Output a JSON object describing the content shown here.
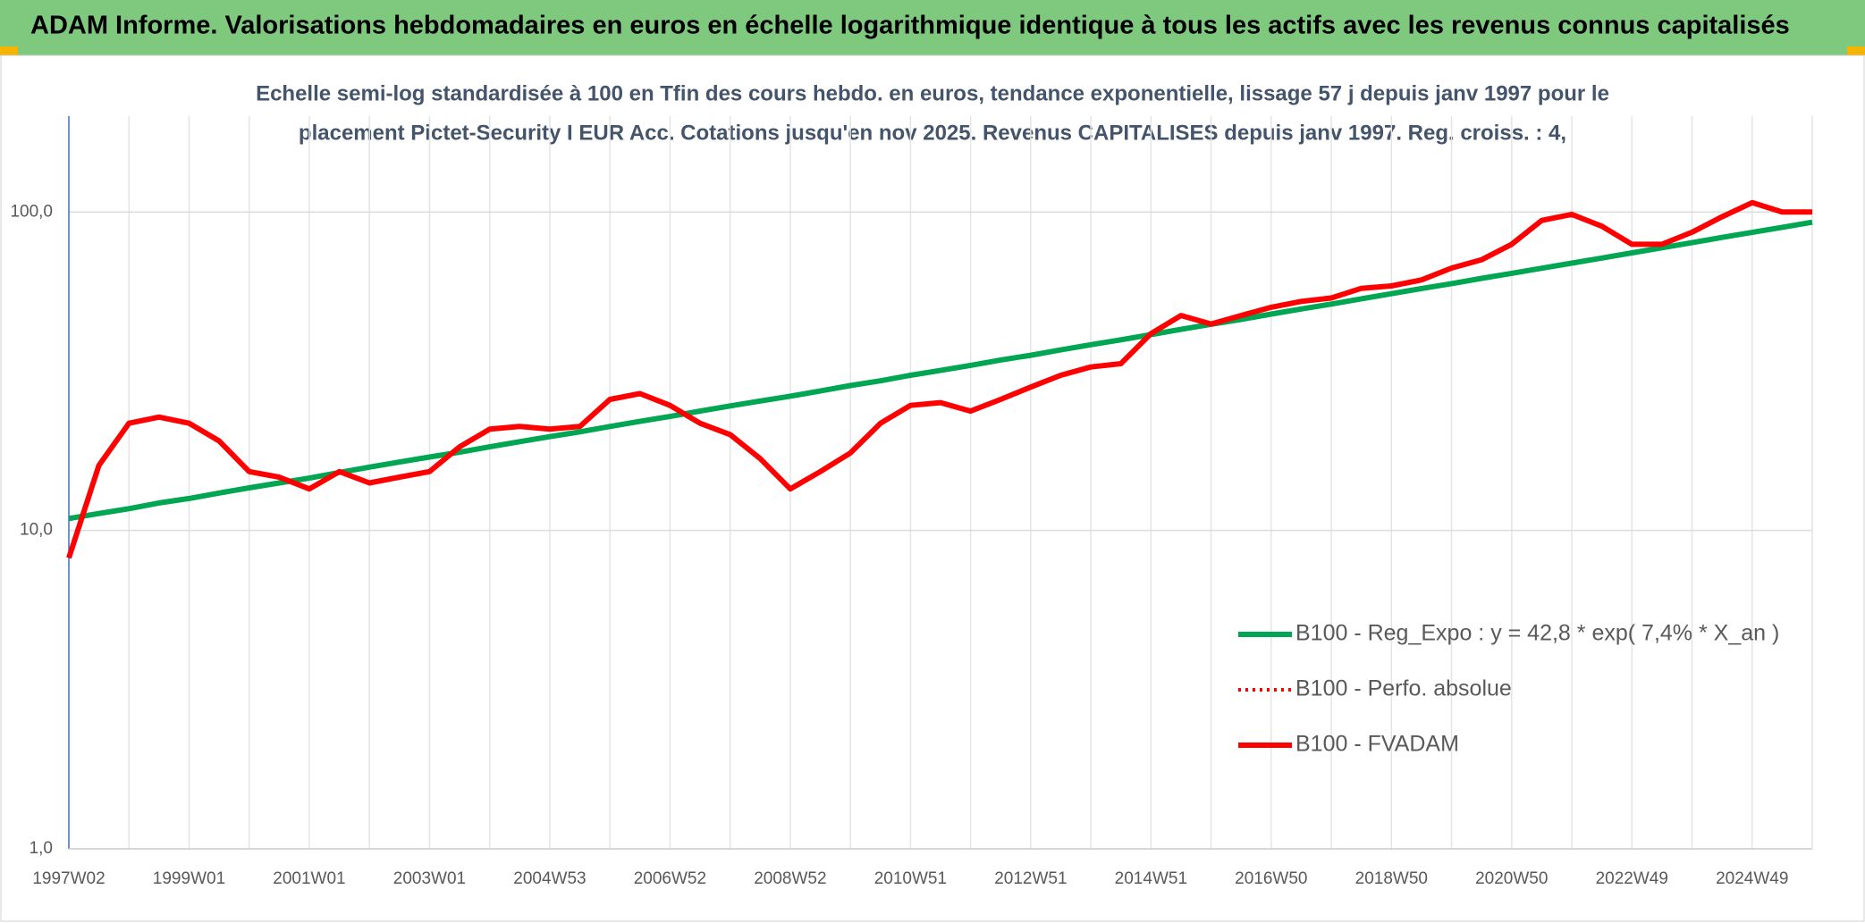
{
  "chart_data": {
    "type": "line",
    "title": "ADAM Informe. Valorisations hebdomadaires en euros en échelle logarithmique identique à tous les actifs avec les revenus connus capitalisés",
    "subtitle": [
      "Echelle semi-log standardisée à 100 en Tfin des cours hebdo. en euros, tendance exponentielle, lissage 57 j depuis janv 1997 pour le",
      "placement Pictet-Security I EUR Acc. Cotations jusqu'en nov 2025. Revenus CAPITALISES depuis janv 1997. Reg. croiss. : 4,"
    ],
    "categories": [
      "1997W02",
      null,
      null,
      null,
      "1999W01",
      null,
      null,
      null,
      "2001W01",
      null,
      null,
      null,
      "2003W01",
      null,
      null,
      null,
      "2004W53",
      null,
      null,
      null,
      "2006W52",
      null,
      null,
      null,
      "2008W52",
      null,
      null,
      null,
      "2010W51",
      null,
      null,
      null,
      "2012W51",
      null,
      null,
      null,
      "2014W51",
      null,
      null,
      null,
      "2016W50",
      null,
      null,
      null,
      "2018W50",
      null,
      null,
      null,
      "2020W50",
      null,
      null,
      null,
      "2022W49",
      null,
      null,
      null,
      "2024W49",
      null,
      null
    ],
    "series": [
      {
        "name": "B100 - Reg_Expo : y = 42,8 * exp( 7,4% *  X_an )",
        "color": "#00a651",
        "style": "solid",
        "values": [
          10.9,
          11.3,
          11.7,
          12.2,
          12.6,
          13.1,
          13.6,
          14.1,
          14.6,
          15.2,
          15.8,
          16.4,
          17.0,
          17.6,
          18.3,
          19.0,
          19.7,
          20.4,
          21.2,
          22.0,
          22.8,
          23.7,
          24.6,
          25.5,
          26.4,
          27.4,
          28.5,
          29.5,
          30.7,
          31.8,
          33.0,
          34.3,
          35.5,
          36.9,
          38.3,
          39.7,
          41.2,
          42.8,
          44.4,
          46.0,
          47.8,
          49.6,
          51.4,
          53.4,
          55.4,
          57.5,
          59.6,
          61.9,
          64.2,
          66.6,
          69.1,
          71.7,
          74.4,
          77.2,
          80.1,
          83.2,
          86.3,
          89.5,
          92.9
        ]
      },
      {
        "name": "B100 - Perfo. absolue",
        "color": "#ff0000",
        "style": "dotted",
        "values": [
          8.2,
          16,
          21.7,
          22.7,
          21.7,
          19.1,
          15.3,
          14.7,
          13.5,
          15.3,
          14.1,
          14.7,
          15.3,
          18.3,
          20.8,
          21.2,
          20.8,
          21.2,
          25.8,
          26.9,
          24.7,
          21.7,
          20,
          16.8,
          13.5,
          15.3,
          17.5,
          21.7,
          24.7,
          25.2,
          23.7,
          25.8,
          28.2,
          30.7,
          32.6,
          33.4,
          41.5,
          47.3,
          44.5,
          47.3,
          50.2,
          52.4,
          53.7,
          57.6,
          58.6,
          61.2,
          66.7,
          70.8,
          79.2,
          94.1,
          98.3,
          90.2,
          79.2,
          79.2,
          86.4,
          96.6,
          107,
          100,
          100
        ]
      },
      {
        "name": "B100 - FVADAM",
        "color": "#ff0000",
        "style": "solid",
        "values": [
          8.2,
          16,
          21.7,
          22.7,
          21.7,
          19.1,
          15.3,
          14.7,
          13.5,
          15.3,
          14.1,
          14.7,
          15.3,
          18.3,
          20.8,
          21.2,
          20.8,
          21.2,
          25.8,
          26.9,
          24.7,
          21.7,
          20,
          16.8,
          13.5,
          15.3,
          17.5,
          21.7,
          24.7,
          25.2,
          23.7,
          25.8,
          28.2,
          30.7,
          32.6,
          33.4,
          41.5,
          47.3,
          44.5,
          47.3,
          50.2,
          52.4,
          53.7,
          57.6,
          58.6,
          61.2,
          66.7,
          70.8,
          79.2,
          94.1,
          98.3,
          90.2,
          79.2,
          79.2,
          86.4,
          96.6,
          107,
          100,
          100
        ]
      }
    ],
    "ylim": [
      1,
      200
    ],
    "log_y": true,
    "yticks": [
      {
        "value": 1,
        "label": "1,0"
      },
      {
        "value": 10,
        "label": "10,0"
      },
      {
        "value": 100,
        "label": "100,0"
      }
    ],
    "grid": true,
    "legend": "lower right"
  }
}
